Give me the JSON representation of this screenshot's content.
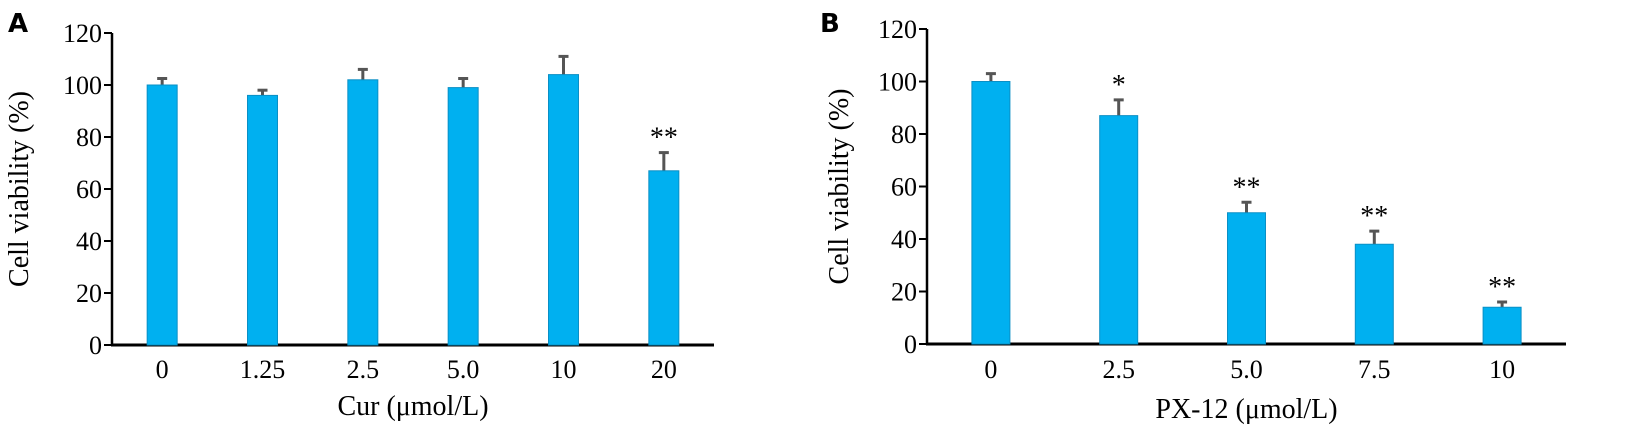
{
  "panels": [
    {
      "letter": "A",
      "colors": {
        "bar": "#00b0f0",
        "bar_edge": "#0a8fc5",
        "error": "#555555",
        "axis": "#000000"
      }
    },
    {
      "letter": "B",
      "colors": {
        "bar": "#00b0f0",
        "bar_edge": "#0a8fc5",
        "error": "#555555",
        "axis": "#000000"
      }
    }
  ],
  "chart_data": [
    {
      "type": "bar",
      "panel": "A",
      "categories": [
        "0",
        "1.25",
        "2.5",
        "5.0",
        "10",
        "20"
      ],
      "values": [
        100,
        96,
        102,
        99,
        104,
        67
      ],
      "errors": [
        2.5,
        2.0,
        4.0,
        3.5,
        7.0,
        7.0
      ],
      "annotations": [
        "",
        "",
        "",
        "",
        "",
        "**"
      ],
      "title": "",
      "xlabel": "Cur (μmol/L)",
      "ylabel": "Cell viability (%)",
      "ylim": [
        0,
        120
      ],
      "yticks": [
        "0",
        "20",
        "40",
        "60",
        "80",
        "100",
        "120"
      ],
      "grid": false
    },
    {
      "type": "bar",
      "panel": "B",
      "categories": [
        "0",
        "2.5",
        "5.0",
        "7.5",
        "10"
      ],
      "values": [
        100,
        87,
        50,
        38,
        14
      ],
      "errors": [
        3.0,
        6.0,
        4.0,
        5.0,
        2.0
      ],
      "annotations": [
        "",
        "*",
        "**",
        "**",
        "**"
      ],
      "title": "",
      "xlabel": "PX-12 (μmol/L)",
      "ylabel": "Cell viability (%)",
      "ylim": [
        0,
        120
      ],
      "yticks": [
        "0",
        "20",
        "40",
        "60",
        "80",
        "100",
        "120"
      ],
      "grid": false
    }
  ]
}
